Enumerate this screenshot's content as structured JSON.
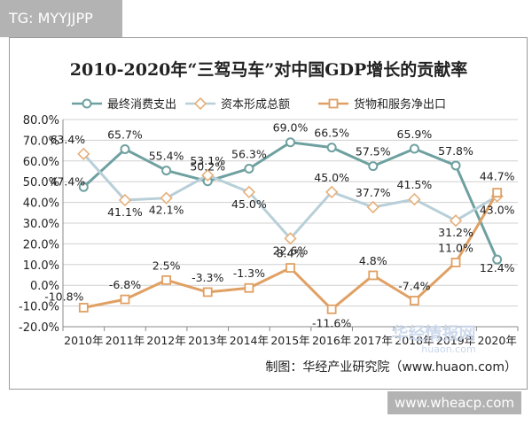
{
  "top_tag": "TG: MYYJJPP",
  "watermark_bottom": "www.wheacp.com",
  "chart_data": {
    "type": "line",
    "title": "2010-2020年“三驾马车”对中国GDP增长的贡献率",
    "categories": [
      "2010年",
      "2011年",
      "2012年",
      "2013年",
      "2014年",
      "2015年",
      "2016年",
      "2017年",
      "2018年",
      "2019年",
      "2020年"
    ],
    "ylim": [
      -20,
      80
    ],
    "yticks": [
      "80.0%",
      "70.0%",
      "60.0%",
      "50.0%",
      "40.0%",
      "30.0%",
      "20.0%",
      "10.0%",
      "0.0%",
      "-10.0%",
      "-20.0%"
    ],
    "ytick_values": [
      80,
      70,
      60,
      50,
      40,
      30,
      20,
      10,
      0,
      -10,
      -20
    ],
    "grid": true,
    "legend": "top",
    "series": [
      {
        "name": "最终消费支出",
        "color": "#6fa0a0",
        "marker": "circle",
        "values": [
          47.4,
          65.7,
          55.4,
          50.2,
          56.3,
          69.0,
          66.5,
          57.5,
          65.9,
          57.8,
          12.4
        ],
        "labels": [
          "47.4%",
          "65.7%",
          "55.4%",
          "50.2%",
          "56.3%",
          "69.0%",
          "66.5%",
          "57.5%",
          "65.9%",
          "57.8%",
          "12.4%"
        ]
      },
      {
        "name": "资本形成总额",
        "color": "#b8cfd8",
        "marker": "diamond",
        "values": [
          63.4,
          41.1,
          42.1,
          53.1,
          45.0,
          22.6,
          45.0,
          37.7,
          41.5,
          31.2,
          43.0
        ],
        "labels": [
          "63.4%",
          "41.1%",
          "42.1%",
          "53.1%",
          "45.0%",
          "22.6%",
          "45.0%",
          "37.7%",
          "41.5%",
          "31.2%",
          "43.0%"
        ]
      },
      {
        "name": "货物和服务净出口",
        "color": "#e0a063",
        "marker": "square",
        "values": [
          -10.8,
          -6.8,
          2.5,
          -3.3,
          -1.3,
          8.4,
          -11.6,
          4.8,
          -7.4,
          11.0,
          44.7
        ],
        "labels": [
          "-10.8%",
          "-6.8%",
          "2.5%",
          "-3.3%",
          "-1.3%",
          "8.4%",
          "-11.6%",
          "4.8%",
          "-7.4%",
          "11.0%",
          "44.7%"
        ]
      }
    ],
    "source": "制图：华经产业研究院（www.huaon.com）",
    "logo_text": "华经情报网",
    "logo_url_text": "huaon.com"
  }
}
